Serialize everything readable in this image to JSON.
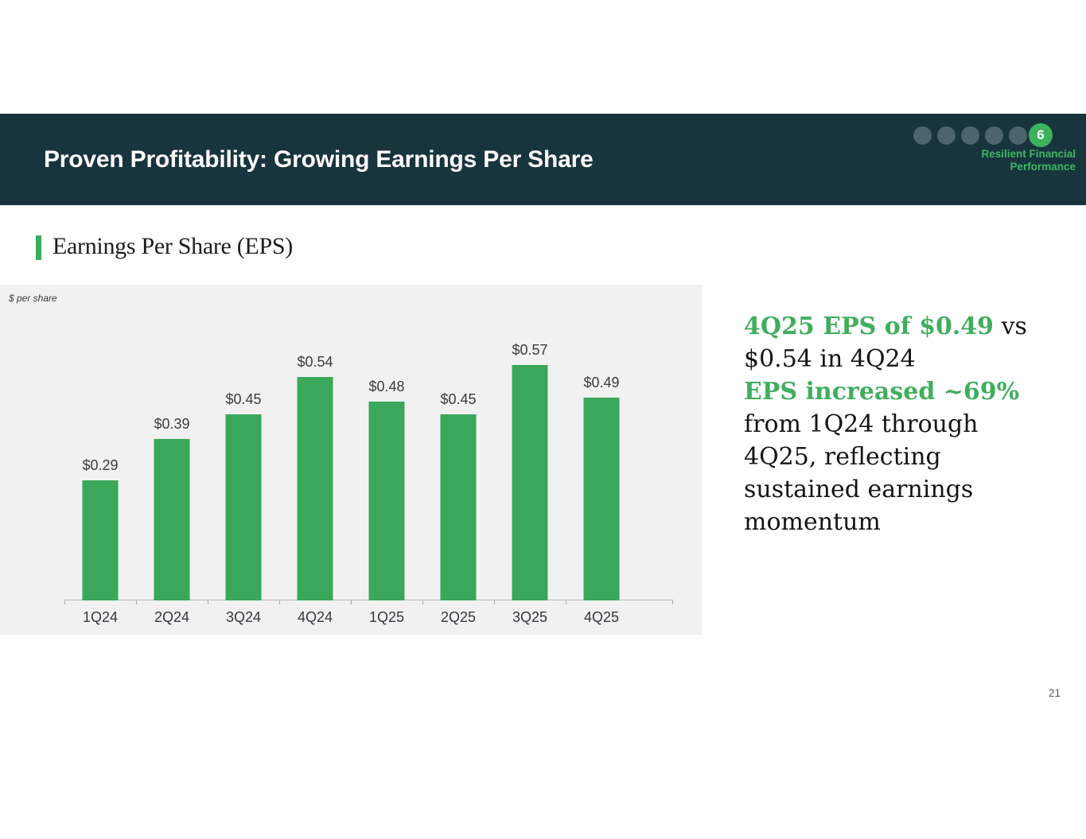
{
  "slide": {
    "title": "Proven Profitability: Growing Earnings Per Share",
    "section_heading": "Earnings Per Share (EPS)",
    "page_number": "21",
    "progress": {
      "inactive_dots": 5,
      "active_label": "6",
      "caption_line1": "Resilient Financial",
      "caption_line2": "Performance"
    }
  },
  "chart_data": {
    "type": "bar",
    "title": "Earnings Per Share (EPS)",
    "unit_label": "$ per share",
    "categories": [
      "1Q24",
      "2Q24",
      "3Q24",
      "4Q24",
      "1Q25",
      "2Q25",
      "3Q25",
      "4Q25"
    ],
    "values": [
      0.29,
      0.39,
      0.45,
      0.54,
      0.48,
      0.45,
      0.57,
      0.49
    ],
    "value_labels": [
      "$0.29",
      "$0.39",
      "$0.45",
      "$0.54",
      "$0.48",
      "$0.45",
      "$0.57",
      "$0.49"
    ],
    "xlabel": "",
    "ylabel": "$ per share",
    "ylim": [
      0,
      0.7
    ],
    "grid": false,
    "legend": "none",
    "bar_color": "#3aa75b",
    "background_color": "#f1f1f1"
  },
  "commentary": {
    "para1_highlight": "4Q25 EPS of $0.49",
    "para1_rest": " vs\n$0.54 in 4Q24",
    "para2_highlight": "EPS increased ~69%",
    "para2_rest": "\nfrom 1Q24 through\n4Q25, reflecting\nsustained earnings\nmomentum"
  },
  "colors": {
    "header_background": "#18343d",
    "accent_green": "#3bad5c",
    "dot_gray": "#4d646d",
    "chart_background": "#f1f1f1",
    "body_text": "#141414"
  }
}
